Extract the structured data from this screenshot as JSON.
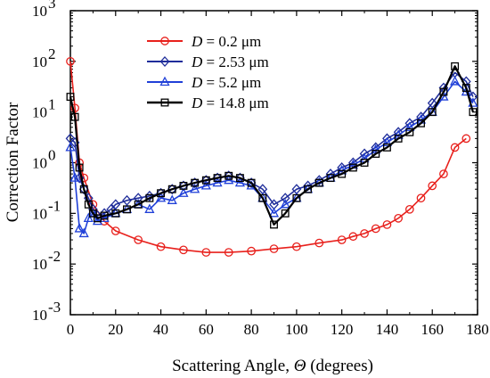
{
  "chart_data": {
    "type": "line",
    "xlabel_prefix": "Scattering Angle, ",
    "xlabel_symbol": "Θ",
    "xlabel_suffix": " (degrees)",
    "ylabel": "Correction Factor",
    "xlim": [
      0,
      180
    ],
    "ylim_exp": [
      -3,
      3
    ],
    "yscale": "log",
    "x_ticks": [
      0,
      20,
      40,
      60,
      80,
      100,
      120,
      140,
      160,
      180
    ],
    "y_tick_exponents": [
      -3,
      -2,
      -1,
      0,
      1,
      2,
      3
    ],
    "grid": false,
    "legend_position": "top-center",
    "series": [
      {
        "name": "D = 0.2 μm",
        "legend": {
          "prefix": "D",
          "suffix": " = 0.2 μm"
        },
        "color": "#e8201c",
        "marker": "circle",
        "x": [
          0,
          2,
          4,
          6,
          10,
          15,
          20,
          30,
          40,
          50,
          60,
          70,
          80,
          90,
          100,
          110,
          120,
          125,
          130,
          135,
          140,
          145,
          150,
          155,
          160,
          165,
          170,
          175
        ],
        "y": [
          100,
          12,
          1.0,
          0.5,
          0.15,
          0.07,
          0.045,
          0.03,
          0.022,
          0.019,
          0.017,
          0.017,
          0.018,
          0.02,
          0.022,
          0.026,
          0.03,
          0.035,
          0.04,
          0.05,
          0.06,
          0.08,
          0.12,
          0.2,
          0.35,
          0.6,
          2.0,
          3.0
        ]
      },
      {
        "name": "D = 2.53 μm",
        "legend": {
          "prefix": "D",
          "suffix": " = 2.53 μm"
        },
        "color": "#1f2d9a",
        "marker": "diamond",
        "x": [
          0,
          2,
          4,
          6,
          8,
          10,
          12,
          15,
          18,
          20,
          25,
          30,
          35,
          40,
          45,
          50,
          55,
          60,
          65,
          70,
          75,
          80,
          85,
          90,
          95,
          100,
          105,
          110,
          115,
          120,
          125,
          130,
          135,
          140,
          145,
          150,
          155,
          160,
          165,
          170,
          175,
          178
        ],
        "y": [
          3,
          2.5,
          0.5,
          0.3,
          0.2,
          0.12,
          0.09,
          0.1,
          0.12,
          0.15,
          0.18,
          0.2,
          0.22,
          0.25,
          0.3,
          0.35,
          0.4,
          0.45,
          0.5,
          0.55,
          0.5,
          0.4,
          0.3,
          0.15,
          0.2,
          0.3,
          0.35,
          0.45,
          0.6,
          0.8,
          1.0,
          1.5,
          2.0,
          3.0,
          4.0,
          6.0,
          8.0,
          15,
          30,
          60,
          40,
          20
        ]
      },
      {
        "name": "D = 5.2 μm",
        "legend": {
          "prefix": "D",
          "suffix": " = 5.2 μm"
        },
        "color": "#2040d8",
        "marker": "triangle",
        "x": [
          0,
          2,
          4,
          6,
          8,
          10,
          12,
          15,
          20,
          25,
          30,
          35,
          40,
          45,
          50,
          55,
          60,
          65,
          70,
          75,
          80,
          85,
          90,
          95,
          100,
          105,
          110,
          115,
          120,
          125,
          130,
          135,
          140,
          145,
          150,
          155,
          160,
          165,
          170,
          175,
          178
        ],
        "y": [
          2,
          0.5,
          0.05,
          0.04,
          0.08,
          0.1,
          0.07,
          0.08,
          0.1,
          0.12,
          0.15,
          0.12,
          0.2,
          0.18,
          0.25,
          0.3,
          0.35,
          0.4,
          0.45,
          0.4,
          0.35,
          0.2,
          0.1,
          0.15,
          0.2,
          0.3,
          0.4,
          0.5,
          0.7,
          0.9,
          1.2,
          1.8,
          2.5,
          3.5,
          5.0,
          7.0,
          10,
          20,
          40,
          25,
          15
        ]
      },
      {
        "name": "D = 14.8 μm",
        "legend": {
          "prefix": "D",
          "suffix": " = 14.8 μm"
        },
        "color": "#000000",
        "marker": "square",
        "x": [
          0,
          2,
          4,
          6,
          8,
          10,
          12,
          15,
          20,
          25,
          30,
          35,
          40,
          45,
          50,
          55,
          60,
          65,
          70,
          75,
          80,
          85,
          90,
          95,
          100,
          105,
          110,
          115,
          120,
          125,
          130,
          135,
          140,
          145,
          150,
          155,
          160,
          165,
          170,
          175,
          178
        ],
        "y": [
          20,
          8,
          0.8,
          0.3,
          0.15,
          0.1,
          0.08,
          0.09,
          0.1,
          0.12,
          0.15,
          0.2,
          0.25,
          0.3,
          0.35,
          0.4,
          0.45,
          0.5,
          0.55,
          0.5,
          0.4,
          0.2,
          0.06,
          0.1,
          0.2,
          0.3,
          0.4,
          0.5,
          0.6,
          0.8,
          1.0,
          1.5,
          2.0,
          3.0,
          4.0,
          6.0,
          10,
          25,
          80,
          30,
          10
        ]
      }
    ]
  }
}
